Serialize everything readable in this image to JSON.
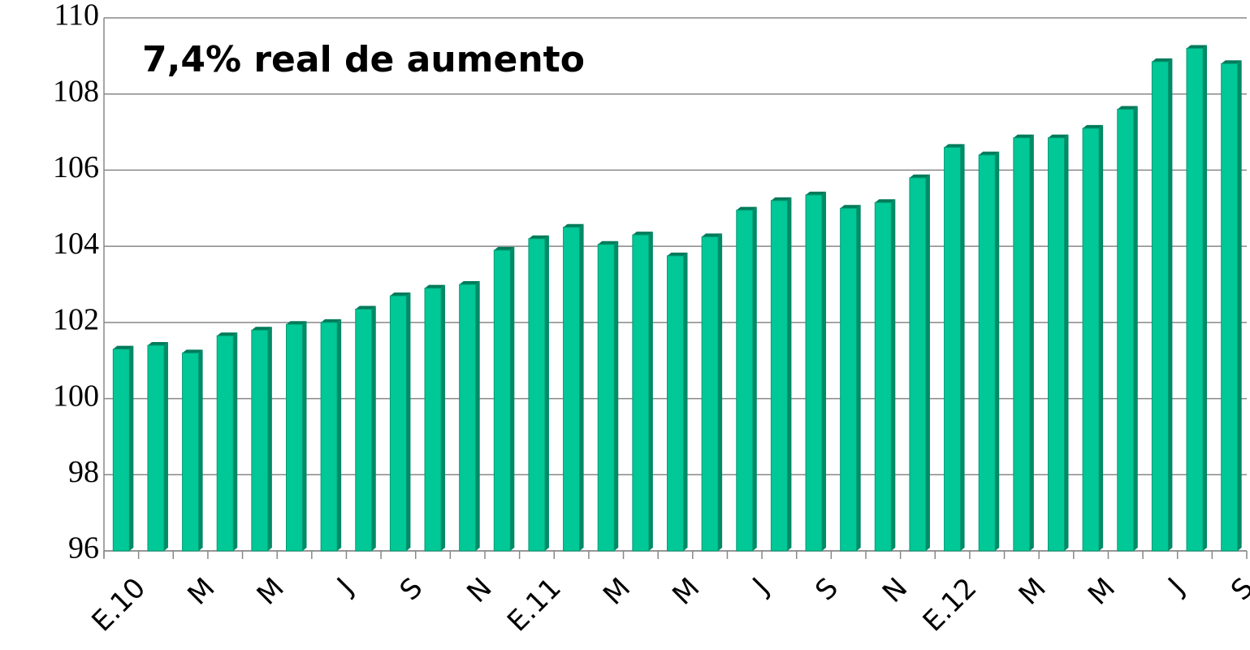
{
  "chart_data": {
    "type": "bar",
    "annotation": "7,4% real de aumento",
    "categories": [
      "E.10",
      null,
      "M",
      null,
      "M",
      null,
      "J",
      null,
      "S",
      null,
      "N",
      null,
      "E.11",
      null,
      "M",
      null,
      "M",
      null,
      "J",
      null,
      "S",
      null,
      "N",
      null,
      "E.12",
      null,
      "M",
      null,
      "M",
      null,
      "J",
      null,
      "S"
    ],
    "values": [
      101.3,
      101.4,
      101.2,
      101.65,
      101.8,
      101.95,
      102.0,
      102.35,
      102.7,
      102.9,
      103.0,
      103.9,
      104.2,
      104.5,
      104.05,
      104.3,
      103.75,
      104.25,
      104.95,
      105.2,
      105.35,
      105.0,
      105.15,
      105.8,
      106.6,
      106.4,
      106.85,
      106.85,
      107.1,
      107.6,
      108.85,
      109.2,
      108.8
    ],
    "color": "#00c896",
    "ylim": [
      96,
      110
    ],
    "yticks": [
      96,
      98,
      100,
      102,
      104,
      106,
      108,
      110
    ],
    "grid": true
  }
}
